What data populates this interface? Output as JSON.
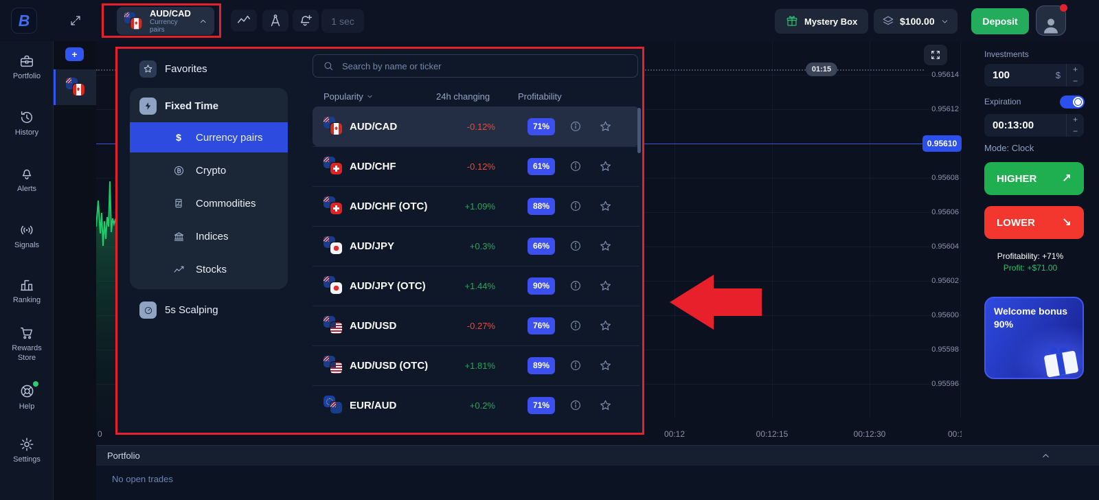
{
  "topbar": {
    "logo_letter": "B",
    "pair_selector": {
      "pair": "AUD/CAD",
      "category": "Currency pairs"
    },
    "interval": "1 sec",
    "mystery_box": "Mystery Box",
    "balance": "$100.00",
    "deposit": "Deposit"
  },
  "tabstrip": {
    "plus": "+"
  },
  "sidebar": {
    "items": [
      {
        "label": "Portfolio"
      },
      {
        "label": "History"
      },
      {
        "label": "Alerts"
      },
      {
        "label": "Signals"
      },
      {
        "label": "Ranking"
      },
      {
        "label": "Rewards Store"
      },
      {
        "label": "Help"
      },
      {
        "label": "Settings"
      }
    ]
  },
  "asset_picker": {
    "search_placeholder": "Search by name or ticker",
    "favorites_label": "Favorites",
    "fixed_time_label": "Fixed Time",
    "categories": [
      {
        "label": "Currency pairs",
        "icon": "dollar-icon",
        "selected": true
      },
      {
        "label": "Crypto",
        "icon": "bitcoin-icon",
        "selected": false
      },
      {
        "label": "Commodities",
        "icon": "barrel-icon",
        "selected": false
      },
      {
        "label": "Indices",
        "icon": "bank-icon",
        "selected": false
      },
      {
        "label": "Stocks",
        "icon": "stocks-icon",
        "selected": false
      }
    ],
    "scalping_label": "5s Scalping",
    "columns": {
      "c0": "Popularity",
      "c1": "24h changing",
      "c2": "Profitability"
    },
    "rows": [
      {
        "name": "AUD/CAD",
        "change": "-0.12%",
        "direction": "down",
        "profitability": "71%",
        "flags": [
          "au",
          "ca"
        ],
        "selected": true
      },
      {
        "name": "AUD/CHF",
        "change": "-0.12%",
        "direction": "down",
        "profitability": "61%",
        "flags": [
          "au",
          "ch"
        ],
        "selected": false
      },
      {
        "name": "AUD/CHF (OTC)",
        "change": "+1.09%",
        "direction": "up",
        "profitability": "88%",
        "flags": [
          "au",
          "ch"
        ],
        "selected": false
      },
      {
        "name": "AUD/JPY",
        "change": "+0.3%",
        "direction": "up",
        "profitability": "66%",
        "flags": [
          "au",
          "jp"
        ],
        "selected": false
      },
      {
        "name": "AUD/JPY (OTC)",
        "change": "+1.44%",
        "direction": "up",
        "profitability": "90%",
        "flags": [
          "au",
          "jp"
        ],
        "selected": false
      },
      {
        "name": "AUD/USD",
        "change": "-0.27%",
        "direction": "down",
        "profitability": "76%",
        "flags": [
          "au",
          "us"
        ],
        "selected": false
      },
      {
        "name": "AUD/USD (OTC)",
        "change": "+1.81%",
        "direction": "up",
        "profitability": "89%",
        "flags": [
          "au",
          "us"
        ],
        "selected": false
      },
      {
        "name": "EUR/AUD",
        "change": "+0.2%",
        "direction": "up",
        "profitability": "71%",
        "flags": [
          "eu",
          "au"
        ],
        "selected": false
      }
    ]
  },
  "chart": {
    "countdown": "01:15",
    "current_price": "0.95610",
    "price_labels": [
      "0.95614",
      "0.95612",
      "0.95608",
      "0.95606",
      "0.95604",
      "0.95602",
      "0.95600",
      "0.95598",
      "0.95596"
    ],
    "time_labels": [
      "0",
      "00:12",
      "00:12:15",
      "00:12:30",
      "00:1"
    ]
  },
  "trade_panel": {
    "investments_label": "Investments",
    "amount": "100",
    "currency": "$",
    "stepper_plus": "+",
    "stepper_minus": "−",
    "expiration_label": "Expiration",
    "expiration_time": "00:13:00",
    "mode": "Mode: Clock",
    "higher": "HIGHER",
    "higher_arrow": "↗",
    "lower": "LOWER",
    "lower_arrow": "↘",
    "profitability": "Profitability: +71%",
    "profit": "Profit: +$71.00",
    "bonus_line1": "Welcome bonus",
    "bonus_line2": "90%"
  },
  "portfolio": {
    "title": "Portfolio",
    "empty": "No open trades"
  },
  "colors": {
    "accent_blue": "#2b50ed",
    "deposit_green": "#23ac5b",
    "higher_green": "#1fae50",
    "lower_red": "#f4372e",
    "up_text": "#26a65a",
    "down_text": "#e74c3c",
    "annotation_red": "#e8202c"
  }
}
